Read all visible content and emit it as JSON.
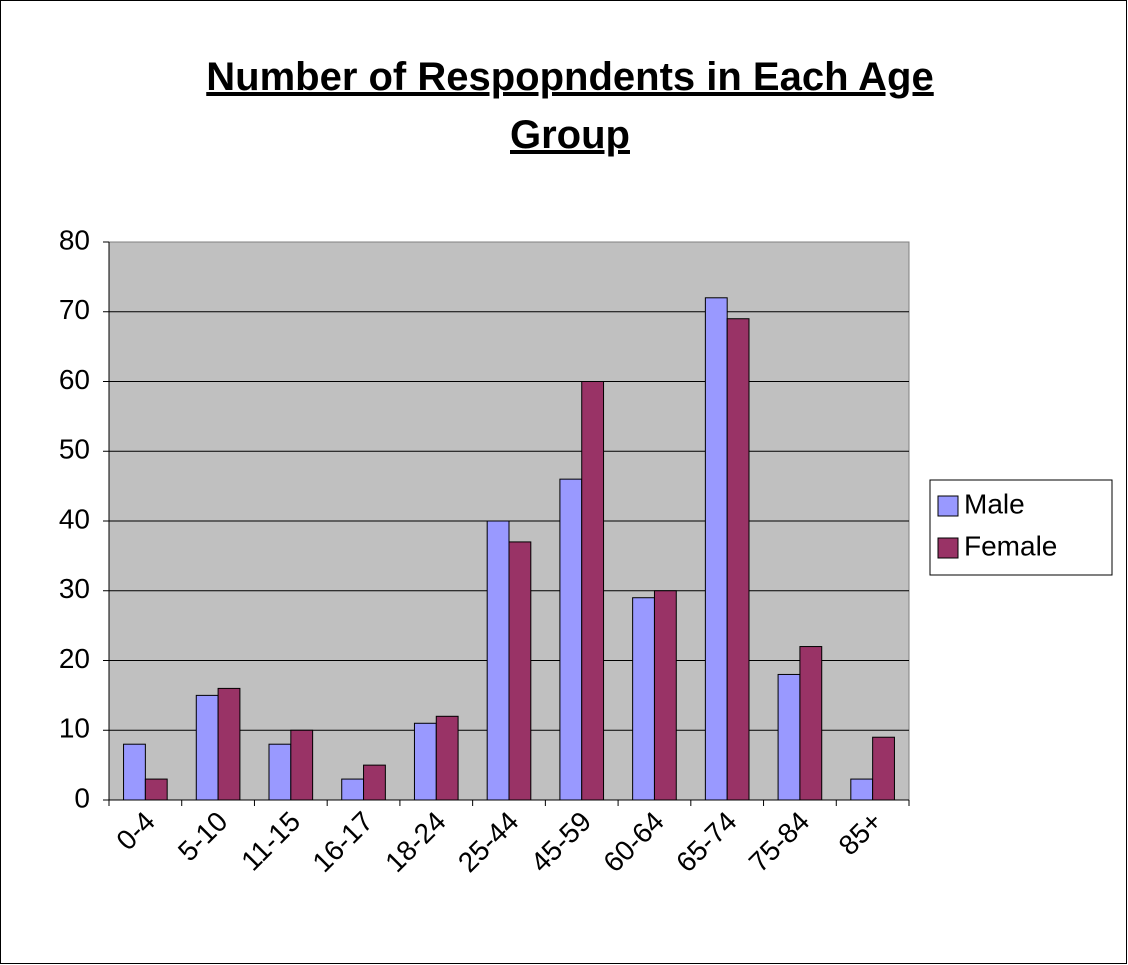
{
  "chart_data": {
    "type": "bar",
    "title": "Number of Respopndents in Each Age Group",
    "categories": [
      "0-4",
      "5-10",
      "11-15",
      "16-17",
      "18-24",
      "25-44",
      "45-59",
      "60-64",
      "65-74",
      "75-84",
      "85+"
    ],
    "series": [
      {
        "name": "Male",
        "color": "#9999ff",
        "values": [
          8,
          15,
          8,
          3,
          11,
          40,
          46,
          29,
          72,
          18,
          3
        ]
      },
      {
        "name": "Female",
        "color": "#993366",
        "values": [
          3,
          16,
          10,
          5,
          12,
          37,
          60,
          30,
          69,
          22,
          9
        ]
      }
    ],
    "ylim": [
      0,
      80
    ],
    "yticks": [
      0,
      10,
      20,
      30,
      40,
      50,
      60,
      70,
      80
    ],
    "grid": true,
    "legend": "right"
  }
}
